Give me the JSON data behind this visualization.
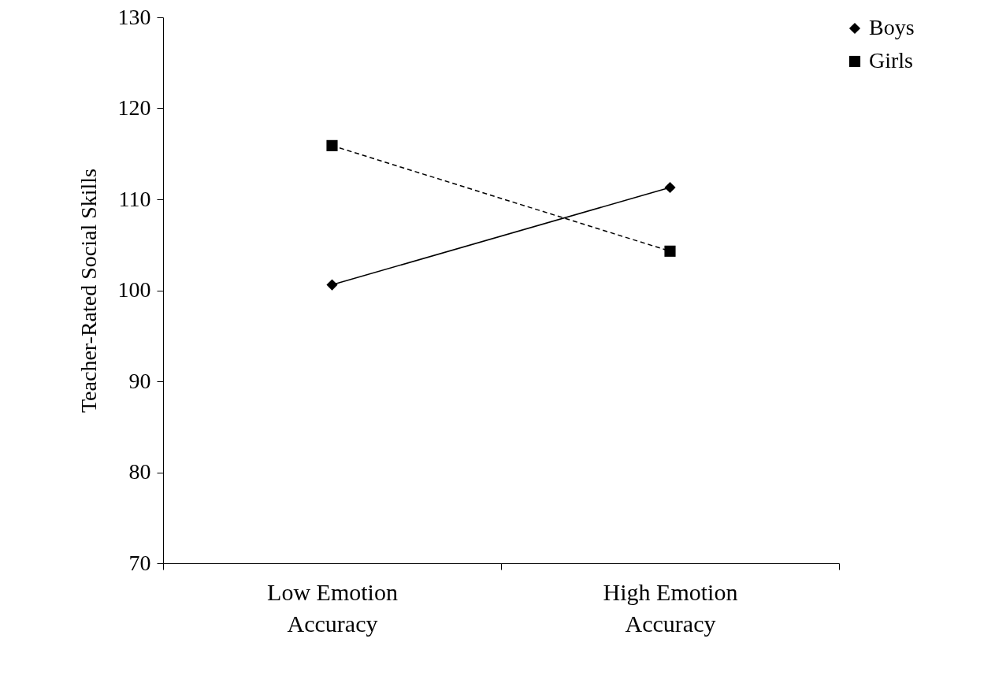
{
  "chart_data": {
    "type": "line",
    "ylabel": "Teacher-Rated Social Skills",
    "categories": [
      "Low Emotion Accuracy",
      "High Emotion Accuracy"
    ],
    "ylim": [
      70,
      130
    ],
    "yticks": [
      70,
      80,
      90,
      100,
      110,
      120,
      130
    ],
    "grid": false,
    "legend": "right",
    "series": [
      {
        "name": "Boys",
        "color": "#000000",
        "marker": "diamond",
        "line_style": "solid",
        "values": [
          100.6,
          111.3
        ]
      },
      {
        "name": "Girls",
        "color": "#000000",
        "marker": "square",
        "line_style": "dashed",
        "values": [
          115.9,
          104.3
        ]
      }
    ]
  }
}
